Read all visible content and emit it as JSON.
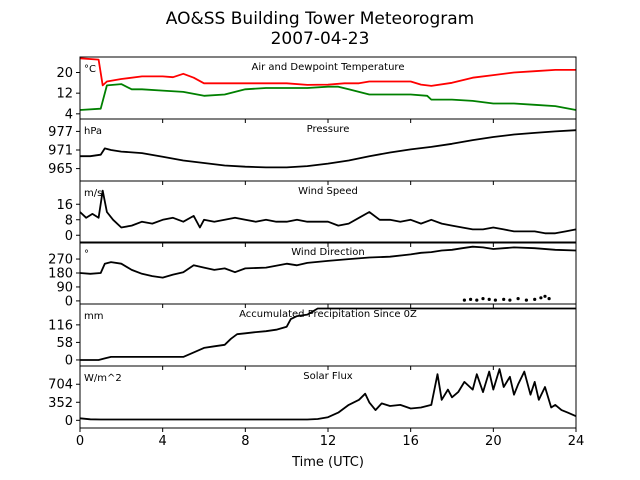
{
  "figure": {
    "title_line1": "AO&SS Building Tower Meteorogram",
    "title_line2": "2007-04-23",
    "xlabel": "Time (UTC)"
  },
  "chart_data": {
    "type": "line",
    "xlim": [
      0,
      24
    ],
    "xticks": [
      0,
      4,
      8,
      12,
      16,
      20,
      24
    ],
    "panels": [
      {
        "id": "temperature",
        "title": "Air and Dewpoint Temperature",
        "unit": "°C",
        "ylim": [
          2,
          26
        ],
        "yticks": [
          4,
          12,
          20
        ],
        "series": [
          {
            "color": "#ff0000",
            "x": [
              0,
              0.9,
              1.1,
              1.3,
              2,
              3,
              4,
              4.5,
              5,
              5.5,
              6,
              6.3,
              7,
              8,
              9,
              10,
              11,
              12,
              12.8,
              13.5,
              14,
              15,
              16,
              16.5,
              17,
              18,
              19,
              20,
              21,
              22,
              23,
              24
            ],
            "y": [
              25.5,
              25,
              15,
              16.5,
              17.5,
              18.5,
              18.5,
              18.2,
              19.5,
              18,
              15.8,
              15.8,
              15.8,
              15.8,
              15.8,
              15.8,
              15.2,
              15.3,
              15.8,
              15.8,
              16.5,
              16.5,
              16.5,
              15.3,
              14.8,
              16,
              18,
              19,
              20,
              20.5,
              21,
              21
            ]
          },
          {
            "color": "#008000",
            "x": [
              0,
              1,
              1.3,
              2,
              2.5,
              3,
              4,
              5,
              6,
              7,
              8,
              9,
              10,
              11,
              12,
              12.5,
              13,
              14,
              15,
              16,
              16.8,
              17,
              18,
              19,
              20,
              21,
              22,
              23,
              24
            ],
            "y": [
              5.5,
              6,
              15,
              15.5,
              13.5,
              13.5,
              13,
              12.5,
              11,
              11.5,
              13.5,
              14,
              14,
              14,
              14.5,
              14.5,
              13.5,
              11.5,
              11.5,
              11.5,
              11,
              9.5,
              9.5,
              9,
              8,
              8,
              7.5,
              7,
              5.5
            ]
          }
        ]
      },
      {
        "id": "pressure",
        "title": "Pressure",
        "unit": "hPa",
        "ylim": [
          961,
          981
        ],
        "yticks": [
          965,
          971,
          977
        ],
        "series": [
          {
            "color": "#000000",
            "x": [
              0,
              0.5,
              1,
              1.2,
              1.5,
              2,
              3,
              4,
              5,
              6,
              7,
              8,
              9,
              10,
              11,
              12,
              13,
              14,
              15,
              16,
              17,
              18,
              19,
              20,
              21,
              22,
              23,
              24
            ],
            "y": [
              969,
              969,
              969.5,
              971.5,
              971,
              970.5,
              970,
              968.8,
              967.6,
              966.8,
              966,
              965.6,
              965.4,
              965.4,
              965.8,
              966.6,
              967.6,
              969,
              970.2,
              971.2,
              972,
              973,
              974.2,
              975.2,
              976,
              976.5,
              977,
              977.4
            ]
          }
        ]
      },
      {
        "id": "windspeed",
        "title": "Wind Speed",
        "unit": "m/s",
        "ylim": [
          -4,
          28
        ],
        "yticks": [
          0,
          8,
          16
        ],
        "series": [
          {
            "color": "#000000",
            "x": [
              0,
              0.3,
              0.6,
              0.9,
              1.1,
              1.3,
              1.6,
              2,
              2.5,
              3,
              3.5,
              4,
              4.5,
              5,
              5.5,
              5.8,
              6,
              6.5,
              7,
              7.5,
              8,
              8.5,
              9,
              9.5,
              10,
              10.5,
              11,
              11.5,
              12,
              12.5,
              13,
              13.5,
              14,
              14.5,
              15,
              15.5,
              16,
              16.5,
              17,
              17.5,
              18,
              18.5,
              19,
              19.5,
              20,
              20.5,
              21,
              21.5,
              22,
              22.5,
              23,
              23.5,
              24
            ],
            "y": [
              12,
              9,
              11,
              9,
              23,
              12,
              8,
              4,
              5,
              7,
              6,
              8,
              9,
              7,
              10,
              4,
              8,
              7,
              8,
              9,
              8,
              7,
              8,
              7,
              7,
              8,
              7,
              7,
              7,
              5,
              6,
              9,
              12,
              8,
              8,
              7,
              8,
              6,
              8,
              6,
              5,
              4,
              3,
              3,
              4,
              3,
              2,
              2,
              2,
              1,
              1,
              2,
              3
            ]
          }
        ]
      },
      {
        "id": "winddir",
        "title": "Wind Direction",
        "unit": "°",
        "ylim": [
          -20,
          380
        ],
        "yticks": [
          0,
          90,
          180,
          270
        ],
        "series": [
          {
            "color": "#000000",
            "x": [
              0,
              0.5,
              1,
              1.2,
              1.5,
              2,
              2.5,
              3,
              3.5,
              4,
              4.5,
              5,
              5.5,
              6,
              6.5,
              7,
              7.5,
              8,
              9,
              10,
              10.5,
              11,
              12,
              13,
              14,
              15,
              16,
              16.5,
              17,
              17.5,
              18,
              18.5,
              19,
              19.5,
              20,
              20.5,
              21,
              22,
              23,
              24
            ],
            "y": [
              180,
              175,
              180,
              240,
              250,
              240,
              200,
              175,
              160,
              150,
              170,
              185,
              230,
              215,
              200,
              210,
              185,
              210,
              215,
              240,
              230,
              245,
              258,
              270,
              280,
              285,
              300,
              310,
              315,
              325,
              330,
              340,
              350,
              345,
              335,
              340,
              345,
              340,
              330,
              325
            ]
          }
        ],
        "scatter": {
          "color": "#000000",
          "x": [
            18.6,
            18.9,
            19.2,
            19.5,
            19.8,
            20.1,
            20.5,
            20.8,
            21.2,
            21.6,
            22,
            22.3,
            22.5,
            22.7
          ],
          "y": [
            5,
            10,
            5,
            15,
            10,
            5,
            10,
            5,
            15,
            5,
            10,
            20,
            30,
            15
          ]
        }
      },
      {
        "id": "precip",
        "title": "Accumulated Precipitation Since 0Z",
        "unit": "mm",
        "ylim": [
          -20,
          185
        ],
        "yticks": [
          0,
          58,
          116
        ],
        "series": [
          {
            "color": "#000000",
            "x": [
              0,
              0.9,
              1.2,
              1.5,
              2,
              3,
              4,
              5,
              5.5,
              6,
              6.5,
              7,
              7.3,
              7.6,
              8,
              8.5,
              9,
              9.5,
              10,
              10.2,
              10.5,
              11,
              11.5,
              12,
              13,
              14,
              15,
              16,
              17,
              18,
              19,
              20,
              21,
              22,
              23,
              24
            ],
            "y": [
              0,
              0,
              5,
              10,
              10,
              10,
              10,
              10,
              25,
              40,
              45,
              50,
              70,
              85,
              88,
              92,
              95,
              100,
              110,
              135,
              145,
              150,
              170,
              170,
              170,
              170,
              170,
              170,
              170,
              170,
              170,
              170,
              170,
              170,
              170,
              170
            ]
          }
        ]
      },
      {
        "id": "solar",
        "title": "Solar Flux",
        "unit": "W/m^2",
        "ylim": [
          -150,
          1060
        ],
        "yticks": [
          0,
          352,
          704
        ],
        "series": [
          {
            "color": "#000000",
            "x": [
              0,
              0.5,
              1,
              2,
              4,
              6,
              8,
              10,
              11,
              11.5,
              12,
              12.5,
              13,
              13.5,
              13.8,
              14,
              14.3,
              14.6,
              15,
              15.5,
              16,
              16.5,
              17,
              17.3,
              17.5,
              17.8,
              18,
              18.3,
              18.6,
              19,
              19.2,
              19.5,
              19.8,
              20,
              20.3,
              20.5,
              20.8,
              21,
              21.2,
              21.5,
              21.8,
              22,
              22.2,
              22.5,
              22.8,
              23,
              23.3,
              23.6,
              24
            ],
            "y": [
              40,
              20,
              15,
              15,
              15,
              15,
              15,
              15,
              15,
              25,
              60,
              150,
              300,
              400,
              520,
              350,
              200,
              330,
              280,
              300,
              230,
              250,
              300,
              900,
              400,
              600,
              450,
              550,
              750,
              600,
              900,
              550,
              950,
              600,
              1000,
              650,
              850,
              500,
              700,
              950,
              500,
              750,
              400,
              650,
              250,
              300,
              200,
              150,
              80
            ]
          }
        ]
      }
    ]
  }
}
